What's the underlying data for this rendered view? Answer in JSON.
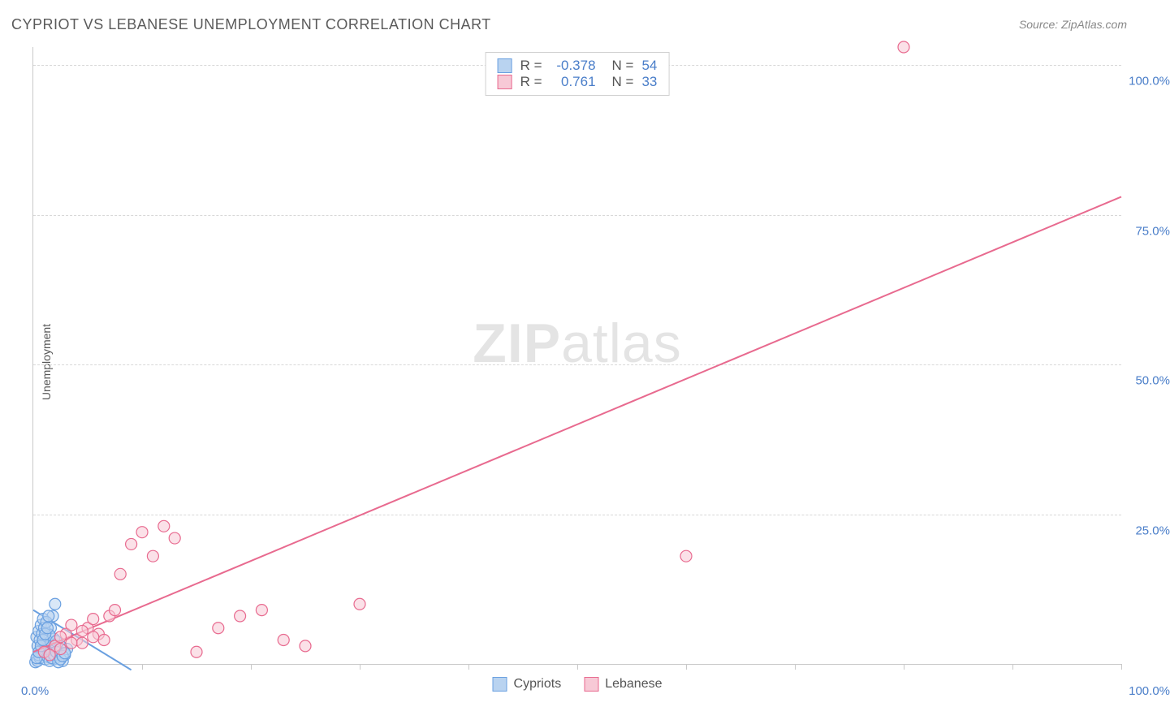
{
  "title": "CYPRIOT VS LEBANESE UNEMPLOYMENT CORRELATION CHART",
  "source_label": "Source:",
  "source_value": "ZipAtlas.com",
  "ylabel": "Unemployment",
  "watermark_bold": "ZIP",
  "watermark_light": "atlas",
  "chart": {
    "type": "scatter",
    "xlim": [
      0,
      100
    ],
    "ylim": [
      0,
      103
    ],
    "ytick_values": [
      25,
      50,
      75,
      100
    ],
    "ytick_labels": [
      "25.0%",
      "50.0%",
      "75.0%",
      "100.0%"
    ],
    "xtick_minor_positions": [
      10,
      20,
      30,
      40,
      50,
      60,
      70,
      80,
      90,
      100
    ],
    "xtick_label_left": "0.0%",
    "xtick_label_right": "100.0%",
    "background_color": "#ffffff",
    "grid_color": "#d8d8d8",
    "axis_color": "#c9c9c9",
    "tick_label_color": "#4a7ec9",
    "marker_radius": 7,
    "marker_stroke_width": 1.2,
    "trend_line_width": 2,
    "series": [
      {
        "name": "Cypriots",
        "fill_color": "#b9d3f0",
        "stroke_color": "#6aa0e0",
        "fill_opacity": 0.55,
        "R": "-0.378",
        "N": "54",
        "trend_line": {
          "x1": 0,
          "y1": 9,
          "x2": 9,
          "y2": -1
        },
        "points": [
          [
            0.2,
            0.3
          ],
          [
            0.4,
            0.5
          ],
          [
            0.6,
            1.0
          ],
          [
            0.8,
            2.0
          ],
          [
            1.0,
            3.0
          ],
          [
            1.2,
            4.0
          ],
          [
            1.4,
            5.0
          ],
          [
            1.6,
            6.0
          ],
          [
            1.8,
            8.0
          ],
          [
            2.0,
            10.0
          ],
          [
            0.5,
            1.5
          ],
          [
            0.7,
            2.5
          ],
          [
            0.9,
            3.5
          ],
          [
            1.1,
            0.8
          ],
          [
            1.3,
            1.2
          ],
          [
            1.5,
            2.2
          ],
          [
            1.7,
            3.2
          ],
          [
            1.9,
            4.2
          ],
          [
            2.1,
            1.0
          ],
          [
            2.3,
            2.0
          ],
          [
            2.5,
            3.0
          ],
          [
            2.7,
            0.5
          ],
          [
            2.9,
            1.5
          ],
          [
            3.1,
            2.5
          ],
          [
            0.3,
            4.5
          ],
          [
            0.5,
            5.5
          ],
          [
            0.7,
            6.5
          ],
          [
            0.9,
            7.5
          ],
          [
            1.1,
            2.8
          ],
          [
            1.3,
            3.8
          ],
          [
            1.5,
            4.8
          ],
          [
            1.7,
            1.8
          ],
          [
            1.9,
            0.8
          ],
          [
            2.1,
            3.8
          ],
          [
            0.4,
            3.0
          ],
          [
            0.6,
            4.0
          ],
          [
            0.8,
            5.0
          ],
          [
            1.0,
            6.0
          ],
          [
            1.2,
            7.0
          ],
          [
            1.4,
            8.0
          ],
          [
            0.3,
            1.0
          ],
          [
            0.5,
            2.0
          ],
          [
            0.7,
            3.0
          ],
          [
            0.9,
            4.0
          ],
          [
            1.1,
            5.0
          ],
          [
            1.3,
            6.0
          ],
          [
            1.5,
            0.5
          ],
          [
            1.7,
            1.0
          ],
          [
            1.9,
            1.5
          ],
          [
            2.1,
            2.0
          ],
          [
            2.3,
            0.3
          ],
          [
            2.5,
            0.8
          ],
          [
            2.7,
            1.3
          ],
          [
            2.9,
            1.8
          ]
        ]
      },
      {
        "name": "Lebanese",
        "fill_color": "#f7c9d6",
        "stroke_color": "#e86a8f",
        "fill_opacity": 0.55,
        "R": "0.761",
        "N": "33",
        "trend_line": {
          "x1": 0,
          "y1": 2,
          "x2": 100,
          "y2": 78
        },
        "points": [
          [
            1.0,
            2.0
          ],
          [
            2.0,
            3.0
          ],
          [
            3.0,
            5.0
          ],
          [
            4.0,
            4.0
          ],
          [
            5.0,
            6.0
          ],
          [
            6.0,
            5.0
          ],
          [
            7.0,
            8.0
          ],
          [
            8.0,
            15.0
          ],
          [
            9.0,
            20.0
          ],
          [
            10.0,
            22.0
          ],
          [
            11.0,
            18.0
          ],
          [
            12.0,
            23.0
          ],
          [
            13.0,
            21.0
          ],
          [
            15.0,
            2.0
          ],
          [
            17.0,
            6.0
          ],
          [
            19.0,
            8.0
          ],
          [
            21.0,
            9.0
          ],
          [
            23.0,
            4.0
          ],
          [
            25.0,
            3.0
          ],
          [
            30.0,
            10.0
          ],
          [
            2.5,
            4.5
          ],
          [
            3.5,
            6.5
          ],
          [
            4.5,
            3.5
          ],
          [
            5.5,
            7.5
          ],
          [
            6.5,
            4.0
          ],
          [
            7.5,
            9.0
          ],
          [
            1.5,
            1.5
          ],
          [
            2.5,
            2.5
          ],
          [
            3.5,
            3.5
          ],
          [
            4.5,
            5.5
          ],
          [
            5.5,
            4.5
          ],
          [
            60.0,
            18.0
          ],
          [
            80.0,
            103.0
          ]
        ]
      }
    ]
  },
  "legend_top": {
    "r_label": "R =",
    "n_label": "N ="
  },
  "legend_bottom": [
    {
      "label": "Cypriots",
      "fill": "#b9d3f0",
      "stroke": "#6aa0e0"
    },
    {
      "label": "Lebanese",
      "fill": "#f7c9d6",
      "stroke": "#e86a8f"
    }
  ]
}
